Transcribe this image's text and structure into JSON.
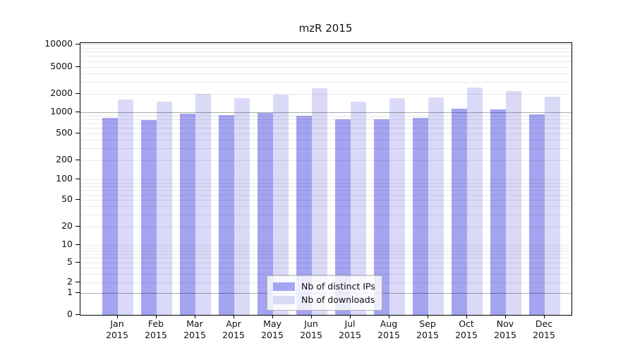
{
  "title": "mzR 2015",
  "chart_data": {
    "type": "bar",
    "title": "mzR 2015",
    "x_categories": [
      "Jan 2015",
      "Feb 2015",
      "Mar 2015",
      "Apr 2015",
      "May 2015",
      "Jun 2015",
      "Jul 2015",
      "Aug 2015",
      "Sep 2015",
      "Oct 2015",
      "Nov 2015",
      "Dec 2015"
    ],
    "months": [
      "Jan",
      "Feb",
      "Mar",
      "Apr",
      "May",
      "Jun",
      "Jul",
      "Aug",
      "Sep",
      "Oct",
      "Nov",
      "Dec"
    ],
    "year": "2015",
    "series": [
      {
        "name": "Nb of distinct IPs",
        "color": "#a4a4f1",
        "values": [
          830,
          780,
          970,
          910,
          980,
          900,
          790,
          800,
          840,
          1160,
          1130,
          940
        ]
      },
      {
        "name": "Nb of downloads",
        "color": "#dadaf8",
        "values": [
          1600,
          1500,
          2000,
          1700,
          1950,
          2400,
          1500,
          1700,
          1720,
          2450,
          2180,
          1780
        ]
      }
    ],
    "y_axis": {
      "scale": "log",
      "range": [
        0,
        10000
      ],
      "ticks": [
        10000,
        5000,
        2000,
        1000,
        500,
        200,
        100,
        50,
        20,
        10,
        5,
        2,
        1,
        0
      ],
      "major_gridlines": [
        1000,
        1
      ]
    },
    "legend": {
      "position": "lower center",
      "items": [
        "Nb of distinct IPs",
        "Nb of downloads"
      ]
    },
    "grid": true
  },
  "colors": {
    "bar_distinct_ips": "#a4a4f1",
    "bar_downloads": "#dadaf8",
    "axis": "#000000",
    "gridline_minor": "rgba(0,0,0,0.085)",
    "gridline_major": "rgba(0,0,0,0.33)",
    "legend_border": "#b3b3b3",
    "legend_bg": "rgba(255,255,255,0.8)"
  }
}
